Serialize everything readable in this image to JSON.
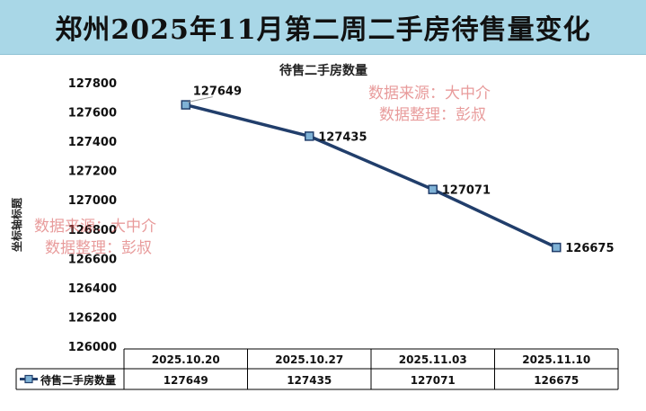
{
  "page": {
    "title": "郑州2025年11月第二周二手房待售量变化"
  },
  "watermarks": [
    {
      "line1": "数据来源：大中介",
      "line2": "数据整理：彭叔"
    },
    {
      "line1": "数据来源：大中介",
      "line2": "数据整理：彭叔"
    }
  ],
  "colors": {
    "title_band": "#a9d7e7",
    "series_line": "#213e6b",
    "marker_fill": "#7fb2d6",
    "watermark": "#d64848"
  },
  "chart_data": {
    "type": "line",
    "title": "待售二手房数量",
    "ylabel": "坐标轴标题",
    "xlabel": "",
    "categories": [
      "2025.10.20",
      "2025.10.27",
      "2025.11.03",
      "2025.11.10"
    ],
    "series": [
      {
        "name": "待售二手房数量",
        "values": [
          127649,
          127435,
          127071,
          126675
        ]
      }
    ],
    "ylim": [
      126000,
      127800
    ],
    "yticks": [
      126000,
      126200,
      126400,
      126600,
      126800,
      127000,
      127200,
      127400,
      127600,
      127800
    ],
    "data_labels": [
      "127649",
      "127435",
      "127071",
      "126675"
    ],
    "grid": false,
    "legend": "data-table-left",
    "data_table": true
  }
}
